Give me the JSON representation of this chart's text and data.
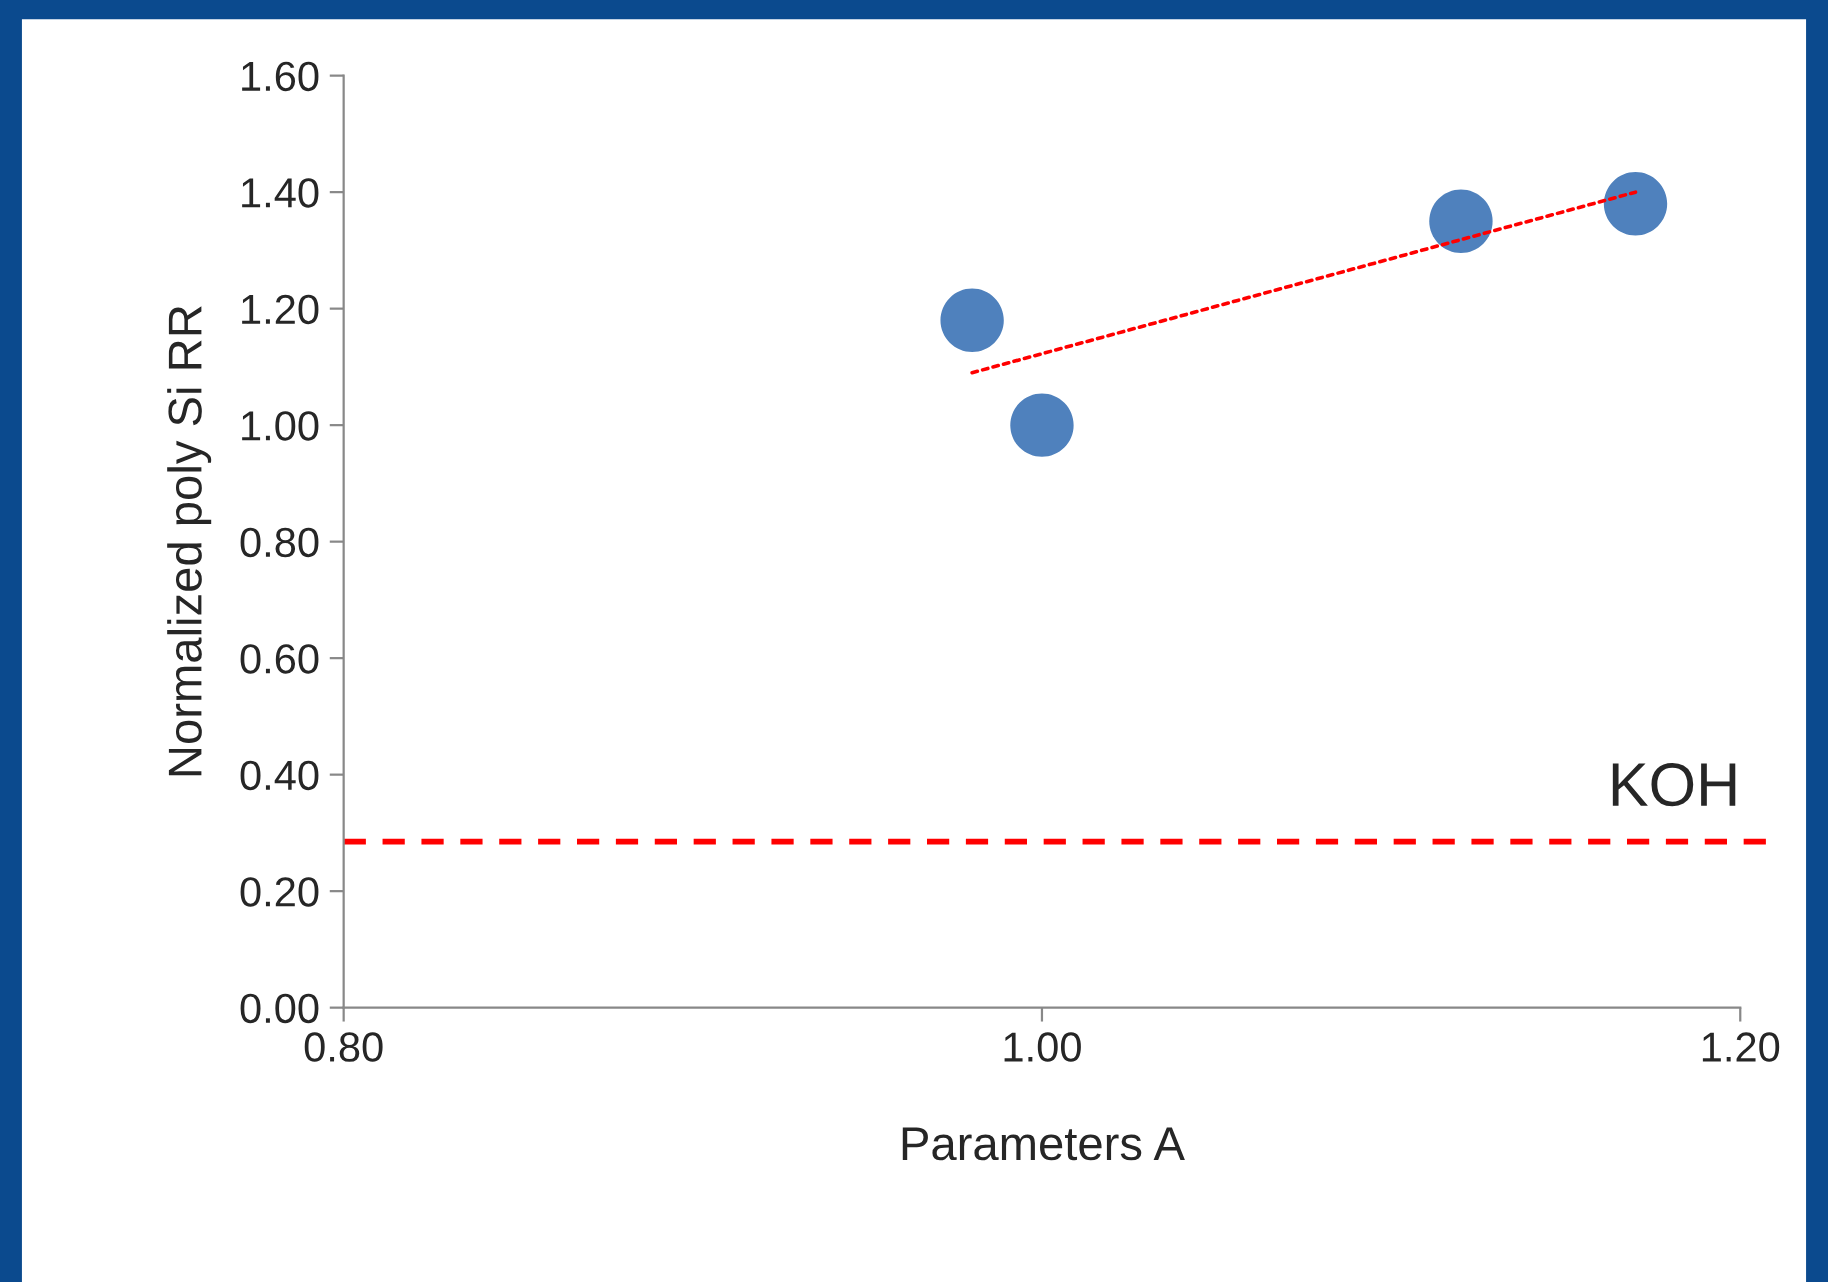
{
  "chart_data": {
    "type": "scatter",
    "xlabel": "Parameters A",
    "ylabel": "Normalized poly Si RR",
    "x": [
      0.98,
      1.0,
      1.12,
      1.17
    ],
    "series": [
      {
        "color": "#4f81bd",
        "values": [
          1.18,
          1.0,
          1.35,
          1.38
        ],
        "marker": "circle"
      },
      {
        "type": "line",
        "color": "#ff0000",
        "x": [
          0.98,
          1.17
        ],
        "values": [
          1.09,
          1.4
        ],
        "line_style": "dotted",
        "marker": "none"
      }
    ],
    "xlim": [
      0.8,
      1.2
    ],
    "xticks": [
      {
        "value": 0.8,
        "label": "0.80"
      },
      {
        "value": 1.0,
        "label": "1.00"
      },
      {
        "value": 1.2,
        "label": "1.20"
      }
    ],
    "ylim": [
      0,
      1.6
    ],
    "yticks": [
      {
        "value": 0,
        "label": "0.00"
      },
      {
        "value": 0.2,
        "label": "0.20"
      },
      {
        "value": 0.4,
        "label": "0.40"
      },
      {
        "value": 0.6,
        "label": "0.60"
      },
      {
        "value": 0.8,
        "label": "0.80"
      },
      {
        "value": 1.0,
        "label": "1.00"
      },
      {
        "value": 1.2,
        "label": "1.20"
      },
      {
        "value": 1.4,
        "label": "1.40"
      },
      {
        "value": 1.6,
        "label": "1.60"
      }
    ],
    "ref_lines": [
      {
        "axis": "y",
        "value": 0.285,
        "label": "KOH",
        "color": "#ff0000",
        "line_style": "dashed"
      }
    ],
    "grid": false,
    "legend": false
  }
}
